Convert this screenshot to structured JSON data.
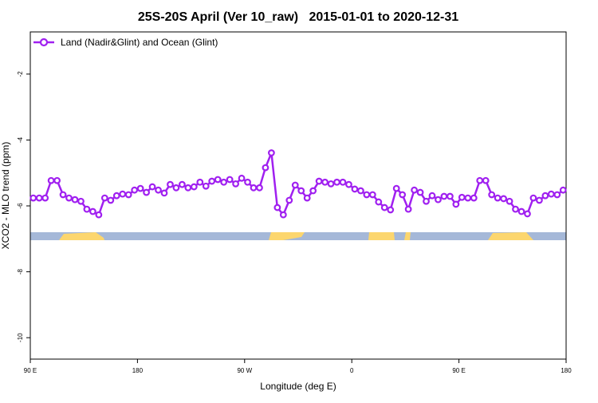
{
  "chart_data": {
    "type": "line",
    "title": "25S-20S April (Ver 10_raw)   2015-01-01 to 2020-12-31",
    "x_label": "Longitude (deg E)",
    "y_label": "XCO2 - MLO trend (ppm)",
    "x": [
      92.5,
      97.5,
      102.5,
      107.5,
      112.5,
      117.5,
      122.5,
      127.5,
      132.5,
      137.5,
      142.5,
      147.5,
      152.5,
      157.5,
      162.5,
      167.5,
      172.5,
      177.5,
      182.5,
      187.5,
      192.5,
      197.5,
      202.5,
      207.5,
      212.5,
      217.5,
      222.5,
      227.5,
      232.5,
      237.5,
      242.5,
      247.5,
      252.5,
      257.5,
      262.5,
      267.5,
      272.5,
      277.5,
      282.5,
      287.5,
      292.5,
      297.5,
      302.5,
      307.5,
      312.5,
      317.5,
      322.5,
      327.5,
      332.5,
      337.5,
      342.5,
      347.5,
      352.5,
      357.5,
      362.5,
      367.5,
      372.5,
      377.5,
      382.5,
      387.5,
      392.5,
      397.5,
      402.5,
      407.5,
      412.5,
      417.5,
      422.5,
      427.5,
      432.5,
      437.5,
      442.5,
      447.5,
      452.5,
      457.5,
      462.5,
      467.5,
      472.5,
      477.5,
      482.5,
      487.5,
      492.5,
      497.5,
      502.5,
      507.5,
      512.5,
      517.5,
      522.5,
      527.5,
      532.5,
      537.5
    ],
    "series": [
      {
        "name": "Land (Nadir&Glint) and Ocean (Glint)",
        "color": "#a020f0",
        "values": [
          -5.76,
          -5.76,
          -5.76,
          -5.23,
          -5.23,
          -5.66,
          -5.76,
          -5.81,
          -5.86,
          -6.1,
          -6.17,
          -6.27,
          -5.76,
          -5.83,
          -5.69,
          -5.64,
          -5.66,
          -5.52,
          -5.47,
          -5.59,
          -5.42,
          -5.52,
          -5.61,
          -5.35,
          -5.45,
          -5.35,
          -5.45,
          -5.42,
          -5.28,
          -5.4,
          -5.25,
          -5.2,
          -5.28,
          -5.2,
          -5.33,
          -5.16,
          -5.28,
          -5.45,
          -5.45,
          -4.84,
          -4.39,
          -6.05,
          -6.27,
          -5.83,
          -5.37,
          -5.54,
          -5.76,
          -5.54,
          -5.25,
          -5.28,
          -5.33,
          -5.28,
          -5.28,
          -5.35,
          -5.49,
          -5.54,
          -5.66,
          -5.66,
          -5.88,
          -6.05,
          -6.12,
          -5.47,
          -5.66,
          -6.1,
          -5.52,
          -5.59,
          -5.86,
          -5.69,
          -5.81,
          -5.71,
          -5.71,
          -5.95,
          -5.74,
          -5.76,
          -5.76,
          -5.23,
          -5.23,
          -5.66,
          -5.76,
          -5.78,
          -5.86,
          -6.1,
          -6.17,
          -6.24,
          -5.76,
          -5.83,
          -5.69,
          -5.64,
          -5.66,
          -5.52
        ]
      }
    ],
    "xlim": [
      90,
      540
    ],
    "xticks": [
      {
        "value": 90,
        "label": "90 E"
      },
      180,
      {
        "value": 270,
        "label": "90 W"
      },
      {
        "value": 360,
        "label": "0"
      },
      {
        "value": 450,
        "label": "90 E"
      },
      {
        "value": 540,
        "label": "180"
      }
    ],
    "ylim": [
      -10.65,
      -0.72
    ],
    "yticks": [
      -2,
      -4,
      -6,
      -8,
      -10
    ],
    "legend": "top-left",
    "grid": false
  }
}
